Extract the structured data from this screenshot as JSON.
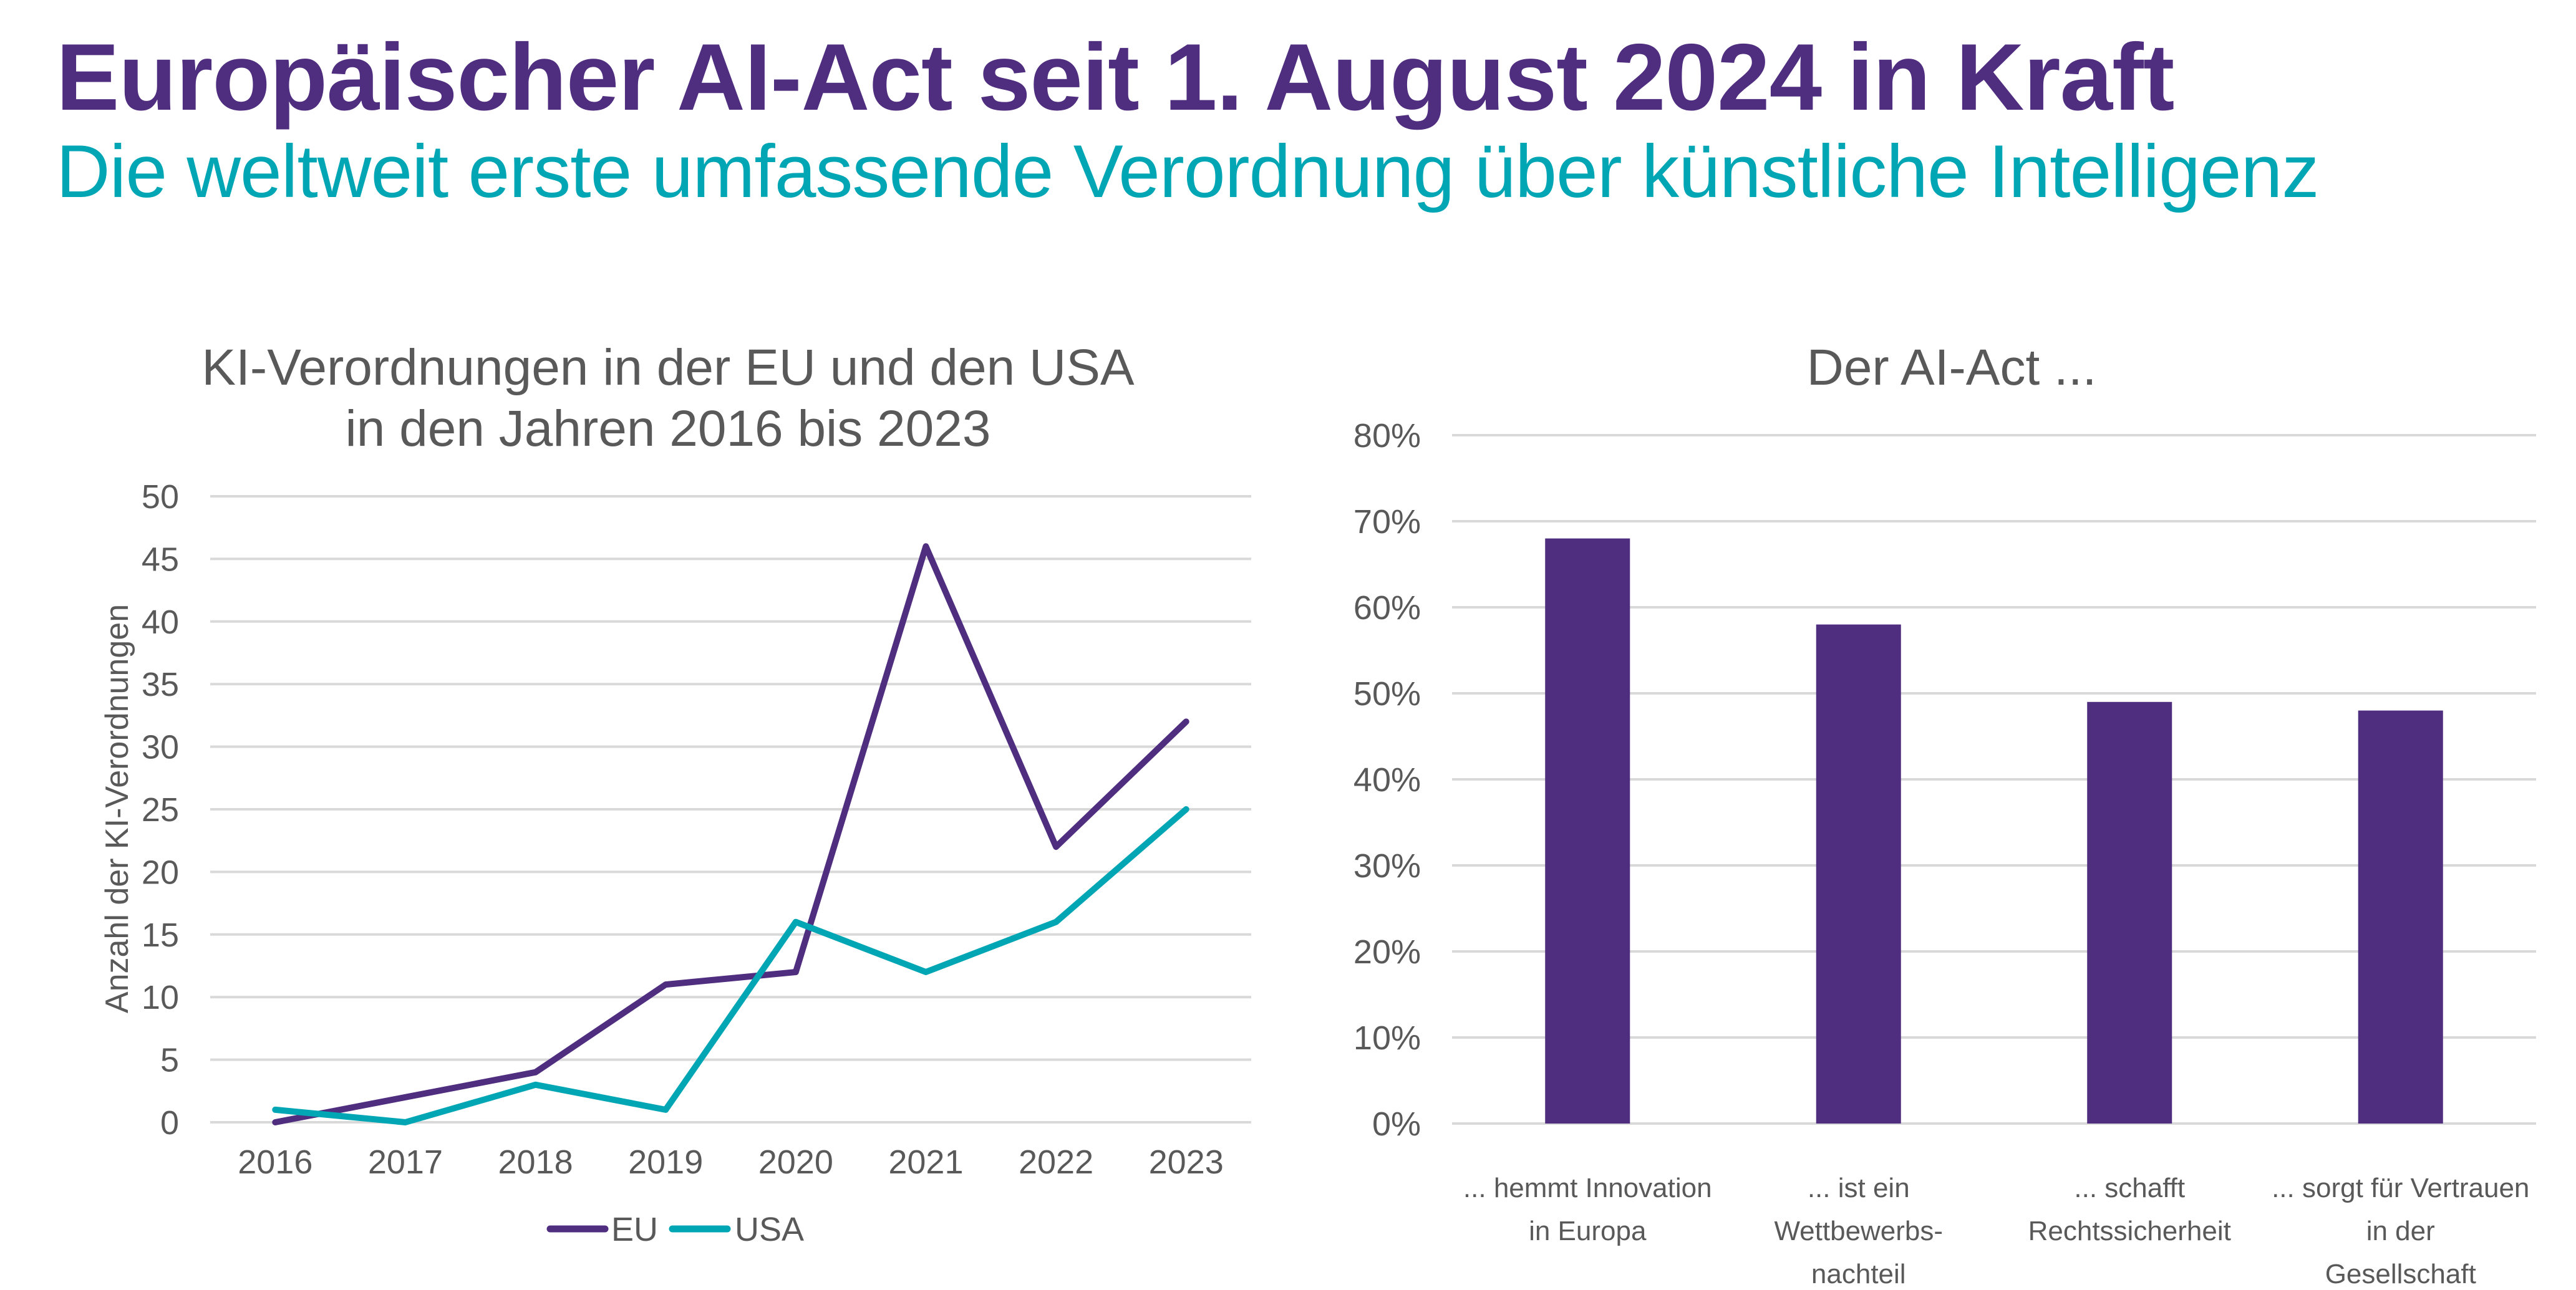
{
  "header": {
    "title": "Europäischer AI-Act seit 1. August 2024 in Kraft",
    "subtitle": "Die weltweit erste umfassende Verordnung über künstliche Intelligenz"
  },
  "colors": {
    "title": "#4f2d7f",
    "subtitle": "#00a6b4",
    "eu": "#4f2d7f",
    "usa": "#00a6b4",
    "bar": "#4f2d7f",
    "grid": "#d9d9d9",
    "text": "#595959"
  },
  "chart_data": [
    {
      "type": "line",
      "title": [
        "KI-Verordnungen in der EU und den USA",
        "in den Jahren 2016 bis 2023"
      ],
      "xlabel": "",
      "ylabel": "Anzahl der KI-Verordnungen",
      "x": [
        "2016",
        "2017",
        "2018",
        "2019",
        "2020",
        "2021",
        "2022",
        "2023"
      ],
      "ylim": [
        0,
        50
      ],
      "yticks": [
        0,
        5,
        10,
        15,
        20,
        25,
        30,
        35,
        40,
        45,
        50
      ],
      "grid": true,
      "legend": "bottom",
      "series": [
        {
          "name": "EU",
          "values": [
            0,
            2,
            4,
            11,
            12,
            46,
            22,
            32
          ]
        },
        {
          "name": "USA",
          "values": [
            1,
            0,
            3,
            1,
            16,
            12,
            16,
            25
          ]
        }
      ]
    },
    {
      "type": "bar",
      "title": "Der AI-Act ...",
      "xlabel": "",
      "ylabel": "",
      "categories": [
        [
          "... hemmt Innovation",
          "in Europa"
        ],
        [
          "... ist ein",
          "Wettbewerbs-",
          "nachteil"
        ],
        [
          "... schafft",
          "Rechtssicherheit"
        ],
        [
          "... sorgt für Vertrauen",
          "in der",
          "Gesellschaft"
        ]
      ],
      "values": [
        68,
        58,
        49,
        48
      ],
      "unit": "%",
      "ylim": [
        0,
        80
      ],
      "yticks": [
        0,
        10,
        20,
        30,
        40,
        50,
        60,
        70,
        80
      ],
      "grid": true,
      "legend": "none"
    }
  ]
}
